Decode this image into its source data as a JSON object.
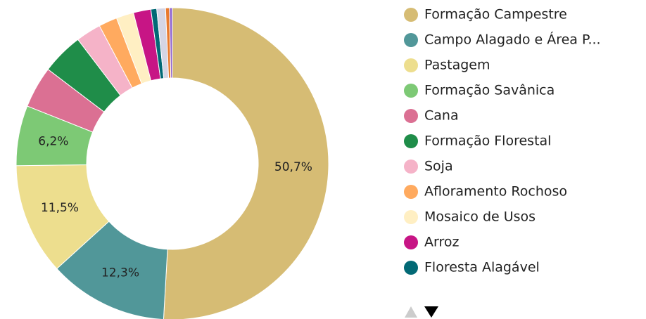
{
  "chart_data": {
    "type": "pie",
    "categories": [
      "Formação Campestre",
      "Campo Alagado e Área P...",
      "Pastagem",
      "Formação Savânica",
      "Cana",
      "Formação Florestal",
      "Soja",
      "Afloramento Rochoso",
      "Mosaico de Usos",
      "Arroz",
      "Floresta Alagável",
      null,
      null,
      null
    ],
    "values": [
      50.7,
      12.3,
      11.5,
      6.2,
      4.3,
      4.3,
      2.6,
      1.9,
      1.8,
      1.8,
      0.6,
      0.9,
      0.4,
      0.3
    ],
    "value_labels": [
      "50,7%",
      "12,3%",
      "11,5%",
      "6,2%",
      null,
      null,
      null,
      null,
      null,
      null,
      null,
      null,
      null,
      null
    ],
    "colors": [
      "#d6bc74",
      "#519799",
      "#edde8e",
      "#7dc975",
      "#db7093",
      "#1f8d49",
      "#f5b3c8",
      "#ffaa5f",
      "#ffefc3",
      "#c71585",
      "#026975",
      "#d5d5e5",
      "#e97a2e",
      "#9065d0"
    ],
    "donut": true
  }
}
